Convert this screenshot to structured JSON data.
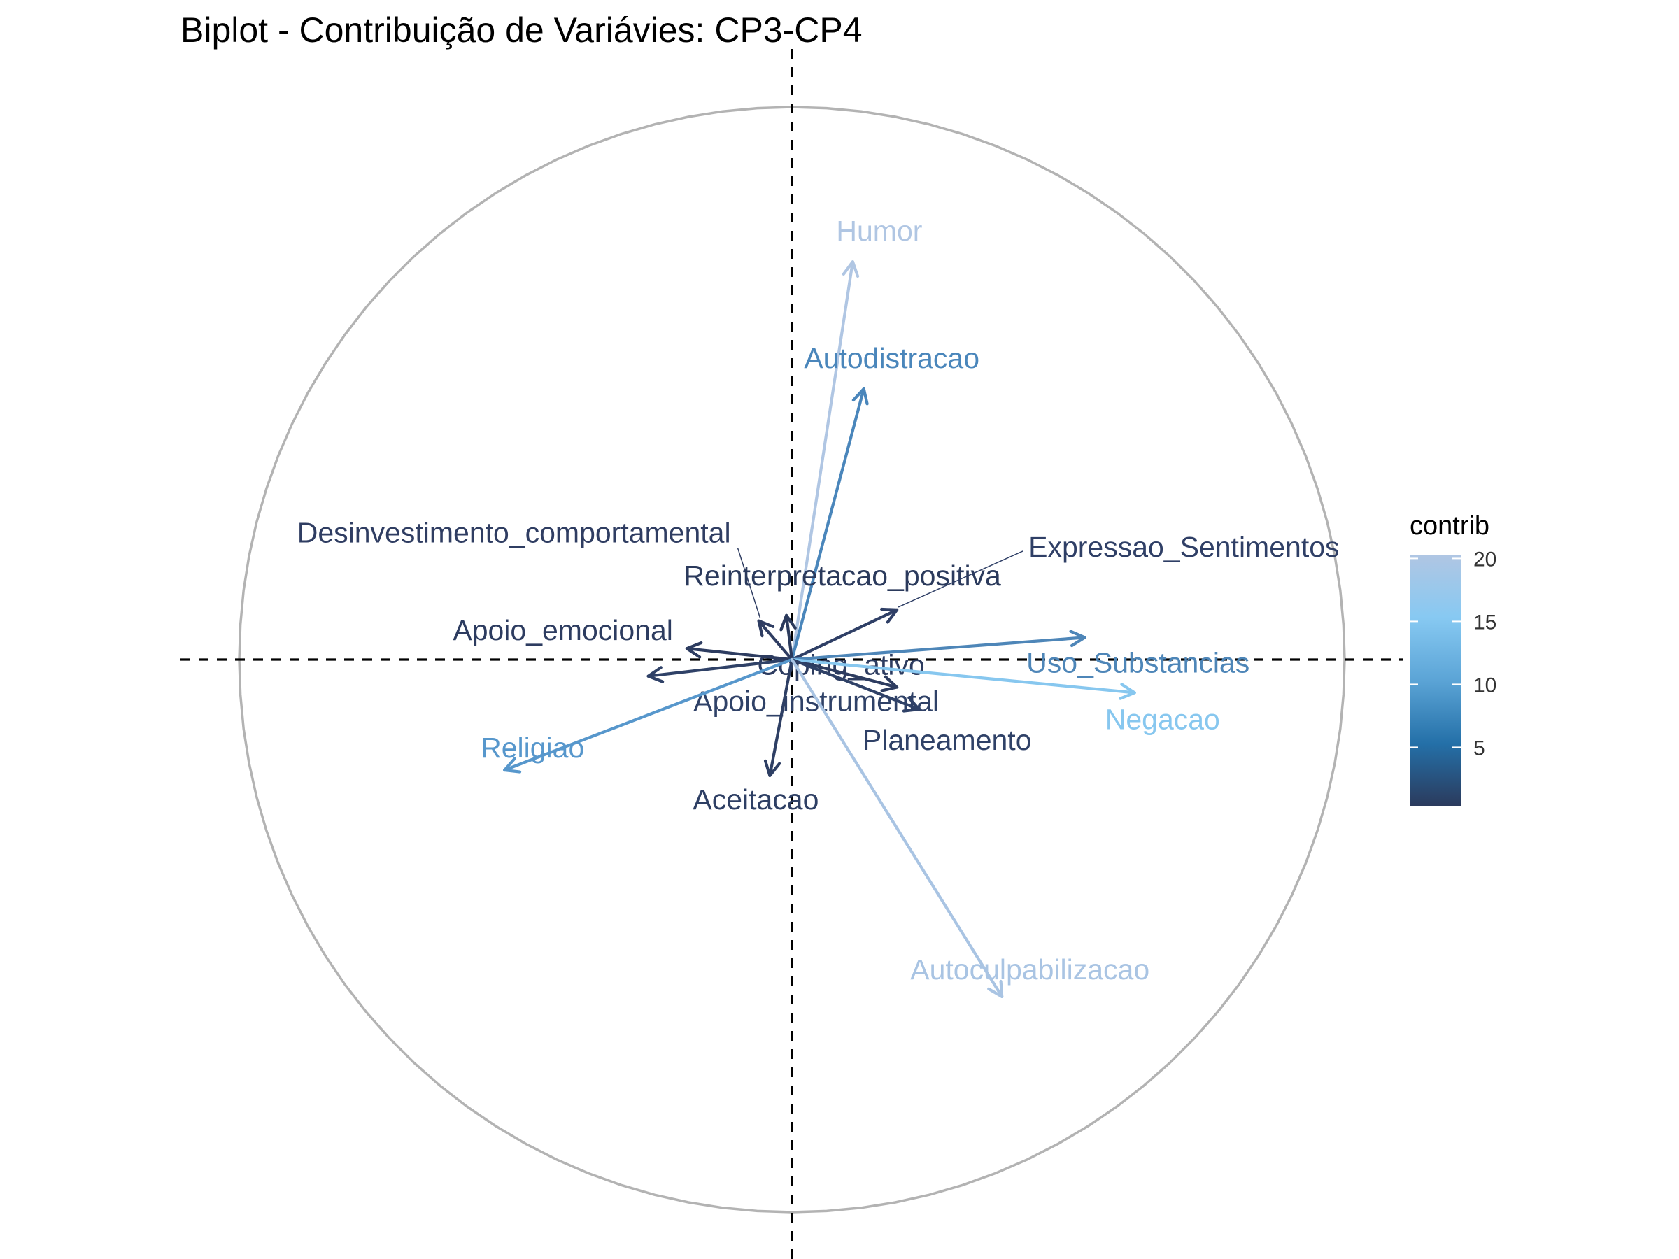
{
  "chart_data": {
    "type": "biplot",
    "title": "Biplot - Contribuição de Variávies: CP3-CP4",
    "xlabel": "",
    "ylabel": "",
    "xlim": [
      -1.11,
      1.11
    ],
    "ylim": [
      -1.12,
      1.12
    ],
    "circle": {
      "radius": 1.0
    },
    "reference_lines": {
      "x": 0,
      "y": 0,
      "style": "dashed"
    },
    "legend": {
      "title": "contrib",
      "placement": "right",
      "range": [
        0.3,
        20.3
      ],
      "ticks": [
        5,
        10,
        15,
        20
      ],
      "colors": [
        "#2b3a5c",
        "#2470a8",
        "#5ba4d6",
        "#87c9f2",
        "#b0c6e3"
      ]
    },
    "variables": [
      {
        "name": "Humor",
        "x": 0.11,
        "y": 0.72,
        "contrib": 20.0,
        "color": "#b0c6e3"
      },
      {
        "name": "Autodistracao",
        "x": 0.13,
        "y": 0.49,
        "contrib": 10.0,
        "color": "#4a86bb"
      },
      {
        "name": "Desinvestimento_comportamental",
        "x": -0.06,
        "y": 0.07,
        "contrib": 1.0,
        "color": "#2f3d62"
      },
      {
        "name": "Reinterpretacao_positiva",
        "x": -0.01,
        "y": 0.08,
        "contrib": 0.5,
        "color": "#2b3a5c"
      },
      {
        "name": "Expressao_Sentimentos",
        "x": 0.19,
        "y": 0.09,
        "contrib": 2.0,
        "color": "#2f3f66"
      },
      {
        "name": "Apoio_emocional",
        "x": -0.19,
        "y": 0.02,
        "contrib": 1.5,
        "color": "#2d3c60"
      },
      {
        "name": "Uso_Substancias",
        "x": 0.53,
        "y": 0.04,
        "contrib": 11.0,
        "color": "#4e86b8"
      },
      {
        "name": "Coping_ativo",
        "x": 0.19,
        "y": -0.05,
        "contrib": 1.5,
        "color": "#2d3c60"
      },
      {
        "name": "Negacao",
        "x": 0.62,
        "y": -0.06,
        "contrib": 15.5,
        "color": "#87c7ef"
      },
      {
        "name": "Apoio_instrumental",
        "x": -0.26,
        "y": -0.03,
        "contrib": 3.0,
        "color": "#2f4167"
      },
      {
        "name": "Planeamento",
        "x": 0.23,
        "y": -0.09,
        "contrib": 3.0,
        "color": "#2f4167"
      },
      {
        "name": "Religiao",
        "x": -0.52,
        "y": -0.2,
        "contrib": 12.0,
        "color": "#5797cc"
      },
      {
        "name": "Aceitacao",
        "x": -0.04,
        "y": -0.21,
        "contrib": 2.5,
        "color": "#2e3f64"
      },
      {
        "name": "Autoculpabilizacao",
        "x": 0.38,
        "y": -0.61,
        "contrib": 19.5,
        "color": "#a9c4e3"
      }
    ]
  }
}
